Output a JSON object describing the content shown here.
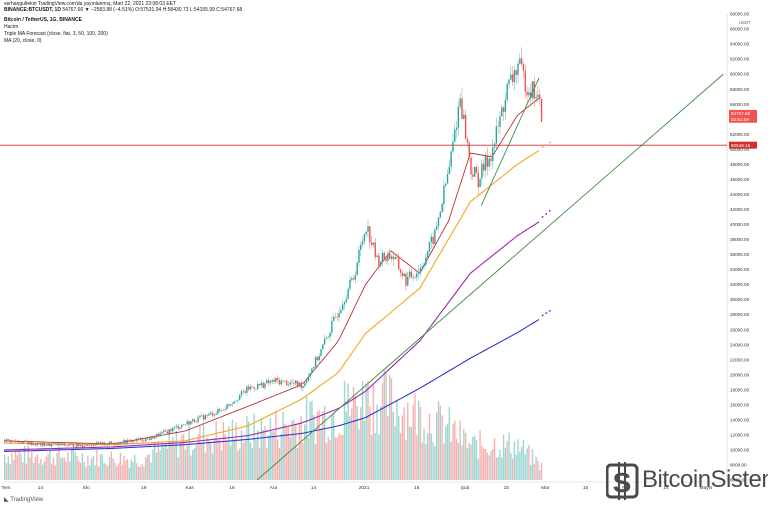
{
  "header": {
    "line1": "serhangultekin TradingView.com'da yayınlanmış, Mart 22, 2021 23:08:03 EET",
    "line2_symbol": "BINANCE:BTCUSDT, 1D",
    "line2_values": "54767.66 ▼ −2583.88 (−4.51%) O:57531.94 H:58430.73 L:54155.99 C:54767.68",
    "title": "Bitcoin / TetherUS, 1G, BINANCE",
    "ind1": "Hacim",
    "ind2": "Triple MA Forecast (close, flat, 3, 50, 100, 200)",
    "ind3": "MA (20, close, 0)"
  },
  "tradingview_label": "TradingView",
  "watermark": "BitcoinSistemi",
  "colors": {
    "up": "#26a69a",
    "down": "#ef5350",
    "ma20": "#b71c1c",
    "ma50": "#f5a623",
    "ma100": "#9c27b0",
    "ma200": "#2f36d3",
    "trend": "#3e8e41",
    "hline": "#d32f2f"
  },
  "chart_data": {
    "type": "candlestick",
    "title": "Bitcoin / TetherUS, 1G, BINANCE",
    "y_unit": "USDT",
    "ylim": [
      6000,
      68000
    ],
    "y_ticks": [
      "68000.00",
      "66000.00",
      "64000.00",
      "62000.00",
      "60000.00",
      "58000.00",
      "56000.00",
      "54000.00",
      "52000.00",
      "50000.00",
      "48000.00",
      "46000.00",
      "44000.00",
      "42000.00",
      "40000.00",
      "38000.00",
      "36000.00",
      "34000.00",
      "32000.00",
      "30000.00",
      "28000.00",
      "26000.00",
      "24000.00",
      "22000.00",
      "20000.00",
      "18000.00",
      "16000.00",
      "14000.00",
      "12000.00",
      "10000.00",
      "8000.00",
      "6000.00"
    ],
    "x_ticks": [
      "Tem",
      "14",
      "Eki",
      "19",
      "Kas",
      "16",
      "Ara",
      "14",
      "2021",
      "18",
      "Şub",
      "15",
      "Mar",
      "15",
      "Nis",
      "14",
      "Mayıs"
    ],
    "price_labels": [
      {
        "text": "54767.66",
        "value": 54767.66
      },
      {
        "text": "02:51:59",
        "value": 54000
      },
      {
        "text": "50548.15",
        "value": 50548.15
      }
    ],
    "horizontal_line": 50548.15,
    "close_keypoints": [
      [
        0,
        11300
      ],
      [
        20,
        10700
      ],
      [
        40,
        10600
      ],
      [
        60,
        10900
      ],
      [
        80,
        11500
      ],
      [
        100,
        13500
      ],
      [
        120,
        15300
      ],
      [
        135,
        18200
      ],
      [
        150,
        19200
      ],
      [
        165,
        18600
      ],
      [
        175,
        23200
      ],
      [
        185,
        28800
      ],
      [
        193,
        33000
      ],
      [
        200,
        40000
      ],
      [
        206,
        35200
      ],
      [
        214,
        36000
      ],
      [
        222,
        32500
      ],
      [
        230,
        34200
      ],
      [
        238,
        38600
      ],
      [
        246,
        47600
      ],
      [
        252,
        57000
      ],
      [
        258,
        47300
      ],
      [
        262,
        46000
      ],
      [
        270,
        50000
      ],
      [
        278,
        57900
      ],
      [
        284,
        61200
      ],
      [
        289,
        58500
      ],
      [
        294,
        57400
      ],
      [
        297,
        54768
      ]
    ],
    "series": [
      {
        "name": "MA (20, close, 0)",
        "keypoints": [
          [
            0,
            11200
          ],
          [
            60,
            10800
          ],
          [
            100,
            12500
          ],
          [
            135,
            15800
          ],
          [
            165,
            18700
          ],
          [
            185,
            24500
          ],
          [
            200,
            32000
          ],
          [
            214,
            36500
          ],
          [
            230,
            33500
          ],
          [
            246,
            40500
          ],
          [
            258,
            49500
          ],
          [
            270,
            49000
          ],
          [
            284,
            54500
          ],
          [
            297,
            57000
          ]
        ]
      },
      {
        "name": "MA 50",
        "keypoints": [
          [
            0,
            10900
          ],
          [
            60,
            10700
          ],
          [
            100,
            11200
          ],
          [
            135,
            13200
          ],
          [
            165,
            16800
          ],
          [
            185,
            20300
          ],
          [
            200,
            25500
          ],
          [
            230,
            31500
          ],
          [
            258,
            43000
          ],
          [
            284,
            48000
          ],
          [
            297,
            50000
          ]
        ]
      },
      {
        "name": "MA 100",
        "keypoints": [
          [
            0,
            10000
          ],
          [
            60,
            10400
          ],
          [
            100,
            11000
          ],
          [
            135,
            11900
          ],
          [
            165,
            13600
          ],
          [
            185,
            15500
          ],
          [
            200,
            17800
          ],
          [
            230,
            24500
          ],
          [
            258,
            33500
          ],
          [
            284,
            38500
          ],
          [
            297,
            40500
          ]
        ]
      },
      {
        "name": "MA 200",
        "keypoints": [
          [
            0,
            9800
          ],
          [
            60,
            10200
          ],
          [
            100,
            10700
          ],
          [
            135,
            11400
          ],
          [
            165,
            12200
          ],
          [
            185,
            13200
          ],
          [
            200,
            14300
          ],
          [
            230,
            18200
          ],
          [
            258,
            22200
          ],
          [
            284,
            25600
          ],
          [
            297,
            27500
          ]
        ]
      }
    ],
    "forecast_dots": {
      "ma50": [
        [
          298,
          50300
        ],
        [
          300,
          50600
        ],
        [
          302,
          50900
        ]
      ],
      "ma100": [
        [
          298,
          41000
        ],
        [
          300,
          41400
        ],
        [
          302,
          41800
        ]
      ],
      "ma200": [
        [
          298,
          27900
        ],
        [
          300,
          28200
        ],
        [
          302,
          28500
        ]
      ]
    },
    "trendlines": [
      {
        "from": [
          140,
          6000
        ],
        "to": [
          398,
          60000
        ]
      },
      {
        "from": [
          264,
          42500
        ],
        "to": [
          296,
          59500
        ]
      }
    ],
    "volume_peaks": [
      [
        0,
        10200
      ],
      [
        75,
        9500
      ],
      [
        100,
        12800
      ],
      [
        140,
        13900
      ],
      [
        185,
        17200
      ],
      [
        200,
        19500
      ],
      [
        214,
        18800
      ],
      [
        246,
        14600
      ],
      [
        258,
        11600
      ],
      [
        270,
        12000
      ],
      [
        284,
        11700
      ],
      [
        297,
        8300
      ]
    ]
  }
}
